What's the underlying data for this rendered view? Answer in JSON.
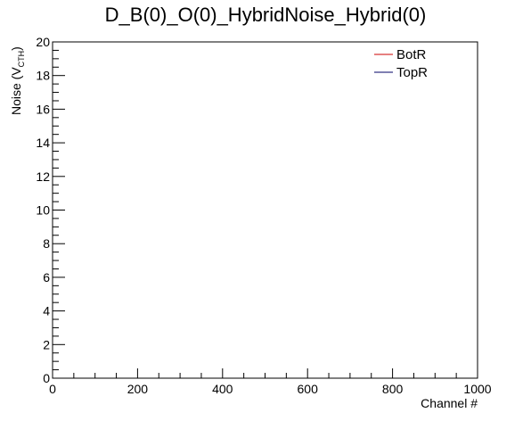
{
  "chart_data": {
    "type": "line",
    "title": "D_B(0)_O(0)_HybridNoise_Hybrid(0)",
    "xlabel": "Channel #",
    "ylabel_main": "Noise (V",
    "ylabel_sub": "CTH",
    "ylabel_close": ")",
    "xlim": [
      0,
      1000
    ],
    "ylim": [
      0,
      20
    ],
    "x_major_ticks": [
      0,
      200,
      400,
      600,
      800,
      1000
    ],
    "x_tick_labels": [
      "0",
      "200",
      "400",
      "600",
      "800",
      "1000"
    ],
    "y_major_ticks": [
      0,
      2,
      4,
      6,
      8,
      10,
      12,
      14,
      16,
      18,
      20
    ],
    "y_tick_labels": [
      "0",
      "2",
      "4",
      "6",
      "8",
      "10",
      "12",
      "14",
      "16",
      "18",
      "20"
    ],
    "grid": false,
    "legend_position": "top-right",
    "series": [
      {
        "name": "BotR",
        "color": "#cc0000",
        "x": [],
        "y": []
      },
      {
        "name": "TopR",
        "color": "#000066",
        "x": [],
        "y": []
      }
    ]
  }
}
